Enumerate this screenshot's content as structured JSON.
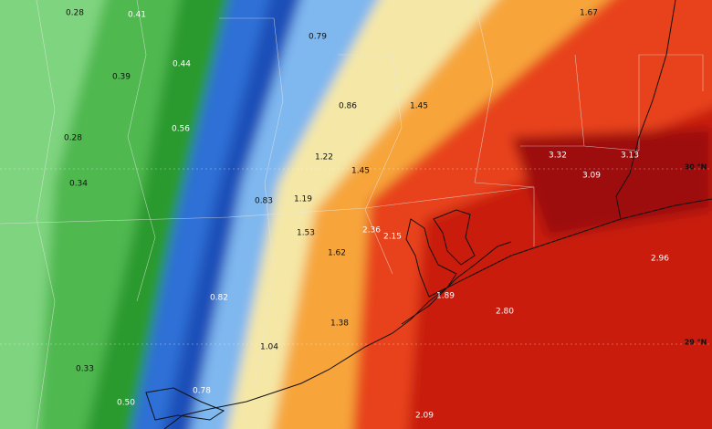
{
  "map": {
    "labels": [
      "0.28",
      "0.41",
      "0.44",
      "0.39",
      "0.79",
      "0.86",
      "1.45",
      "1.67",
      "0.28",
      "0.56",
      "1.22",
      "1.45",
      "3.32",
      "3.13",
      "3.09",
      "0.34",
      "0.83",
      "1.19",
      "1.53",
      "2.36",
      "2.15",
      "1.62",
      "2.96",
      "1.89",
      "0.82",
      "2.80",
      "1.38",
      "1.04",
      "0.33",
      "0.78",
      "0.50",
      "2.09"
    ],
    "latitude_labels": [
      "30 °N",
      "29 °N"
    ]
  }
}
